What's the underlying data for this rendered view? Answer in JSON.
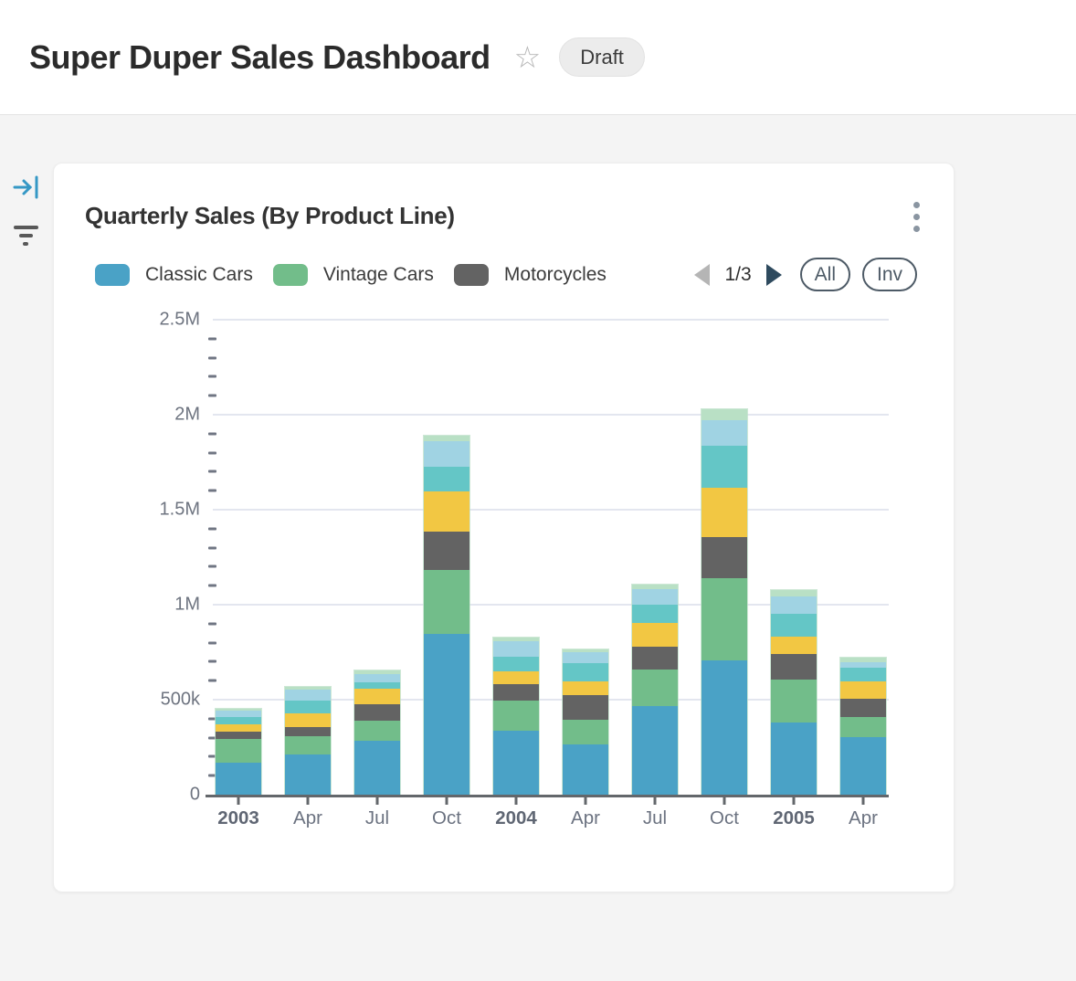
{
  "header": {
    "title": "Super Duper Sales Dashboard",
    "star_icon": "star-outline",
    "status_badge": "Draft"
  },
  "side_toolbar": {
    "collapse_icon": "arrow-bar-to-right",
    "filter_icon": "filter-lines"
  },
  "card": {
    "title": "Quarterly Sales (By Product Line)",
    "menu_icon": "kebab-vertical",
    "legend": {
      "visible_items": [
        {
          "label": "Classic Cars",
          "color": "#4aa2c6"
        },
        {
          "label": "Vintage Cars",
          "color": "#72bd8a"
        },
        {
          "label": "Motorcycles",
          "color": "#636363"
        }
      ],
      "pagination": {
        "label": "1/3",
        "current_page": 1,
        "total_pages": 3,
        "prev_enabled": false,
        "next_enabled": true
      },
      "buttons": [
        {
          "label": "All"
        },
        {
          "label": "Inv"
        }
      ]
    }
  },
  "chart_data": {
    "type": "bar",
    "stacked": true,
    "title": "Quarterly Sales (By Product Line)",
    "categories": [
      "2003",
      "Apr",
      "Jul",
      "Oct",
      "2004",
      "Apr",
      "Jul",
      "Oct",
      "2005",
      "Apr"
    ],
    "bold_categories": [
      "2003",
      "2004",
      "2005"
    ],
    "series": [
      {
        "name": "Classic Cars",
        "color": "#4aa2c6",
        "legend_visible": true,
        "values": [
          169000,
          213000,
          283000,
          848000,
          336000,
          264000,
          465000,
          706000,
          378000,
          301000
        ]
      },
      {
        "name": "Vintage Cars",
        "color": "#72bd8a",
        "legend_visible": true,
        "values": [
          123000,
          97000,
          107000,
          333000,
          159000,
          132000,
          196000,
          436000,
          228000,
          109000
        ]
      },
      {
        "name": "Motorcycles",
        "color": "#636363",
        "legend_visible": true,
        "values": [
          40000,
          45000,
          84000,
          206000,
          88000,
          126000,
          120000,
          215000,
          133000,
          96000
        ]
      },
      {
        "name": "(unlabeled series - yellow)",
        "color": "#f2c743",
        "legend_visible": false,
        "values": [
          40000,
          72000,
          83000,
          211000,
          67000,
          76000,
          125000,
          259000,
          92000,
          92000
        ]
      },
      {
        "name": "(unlabeled series - teal)",
        "color": "#64c6c6",
        "legend_visible": false,
        "values": [
          35000,
          67000,
          32000,
          130000,
          76000,
          96000,
          96000,
          221000,
          122000,
          72000
        ]
      },
      {
        "name": "(unlabeled series - light blue)",
        "color": "#a0d3e3",
        "legend_visible": false,
        "values": [
          33000,
          60000,
          45000,
          132000,
          84000,
          56000,
          80000,
          134000,
          92000,
          29000
        ]
      },
      {
        "name": "(unlabeled series - light green)",
        "color": "#b9e0c5",
        "legend_visible": false,
        "values": [
          10000,
          11000,
          21000,
          28000,
          19000,
          16000,
          24000,
          57000,
          32000,
          21000
        ]
      }
    ],
    "ylim": [
      0,
      2500000
    ],
    "yticks": [
      {
        "value": 0,
        "label": "0"
      },
      {
        "value": 500000,
        "label": "500k"
      },
      {
        "value": 1000000,
        "label": "1M"
      },
      {
        "value": 1500000,
        "label": "1.5M"
      },
      {
        "value": 2000000,
        "label": "2M"
      },
      {
        "value": 2500000,
        "label": "2.5M"
      }
    ],
    "minor_ticks_per_interval": 4,
    "grid": "horizontal",
    "legend_position": "top"
  },
  "colors": {
    "page_bg": "#f4f4f4",
    "accent_blue": "#3598c5",
    "pagination_next": "#2e4a5e",
    "pagination_prev_disabled": "#b5b5b5",
    "pill_outline": "#4d5a66"
  }
}
